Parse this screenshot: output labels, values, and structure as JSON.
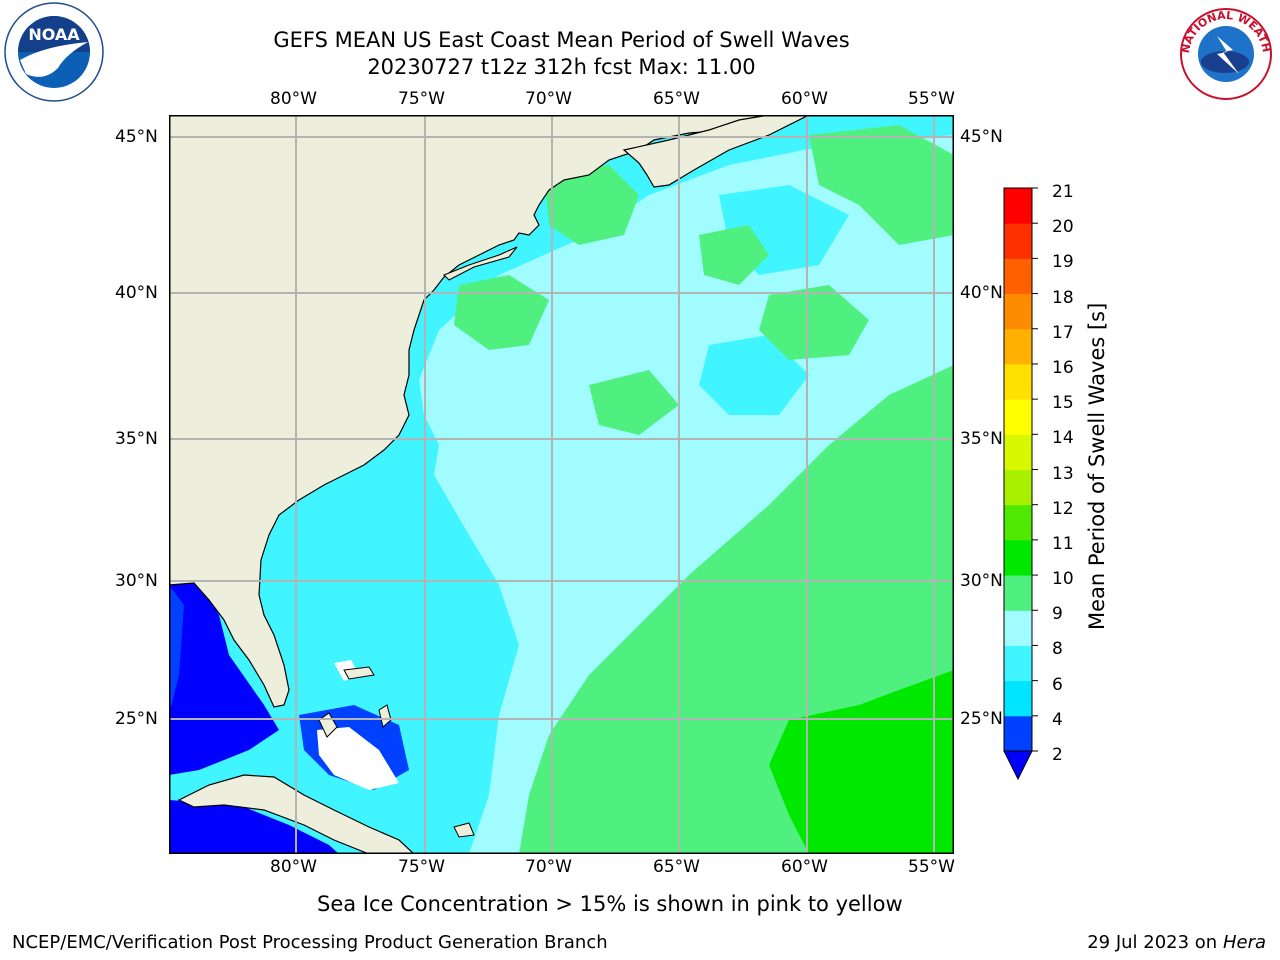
{
  "title": {
    "line1": "GEFS MEAN US East Coast Mean Period of Swell Waves",
    "line2": "20230727 t12z 312h fcst   Max: 11.00"
  },
  "axes": {
    "lon_labels": [
      "80°W",
      "75°W",
      "70°W",
      "65°W",
      "60°W",
      "55°W"
    ],
    "lat_labels": [
      "45°N",
      "40°N",
      "35°N",
      "30°N",
      "25°N"
    ]
  },
  "colorbar": {
    "title": "Mean Period of Swell Waves [s]",
    "ticks": [
      "2",
      "4",
      "6",
      "8",
      "9",
      "10",
      "11",
      "12",
      "13",
      "14",
      "15",
      "16",
      "17",
      "18",
      "19",
      "20",
      "21"
    ],
    "colors": [
      "#0040ff",
      "#00e5ff",
      "#40f5ff",
      "#a0fcff",
      "#50f080",
      "#00e800",
      "#50e800",
      "#a8f000",
      "#d8f800",
      "#ffff00",
      "#ffe000",
      "#ffb000",
      "#ff8c00",
      "#ff6000",
      "#ff3000",
      "#ff0000"
    ],
    "under_color": "#0000ff"
  },
  "note": "Sea Ice Concentration > 15% is shown in pink to yellow",
  "footer": {
    "left": "NCEP/EMC/Verification Post Processing Product Generation Branch",
    "date": "29 Jul 2023 on ",
    "machine": "Hera"
  },
  "logos": {
    "noaa": "NOAA",
    "nws": "NATIONAL WEATHER SERVICE"
  },
  "colors": {
    "land": "#eeeedc",
    "grid": "#b4b4b4"
  }
}
